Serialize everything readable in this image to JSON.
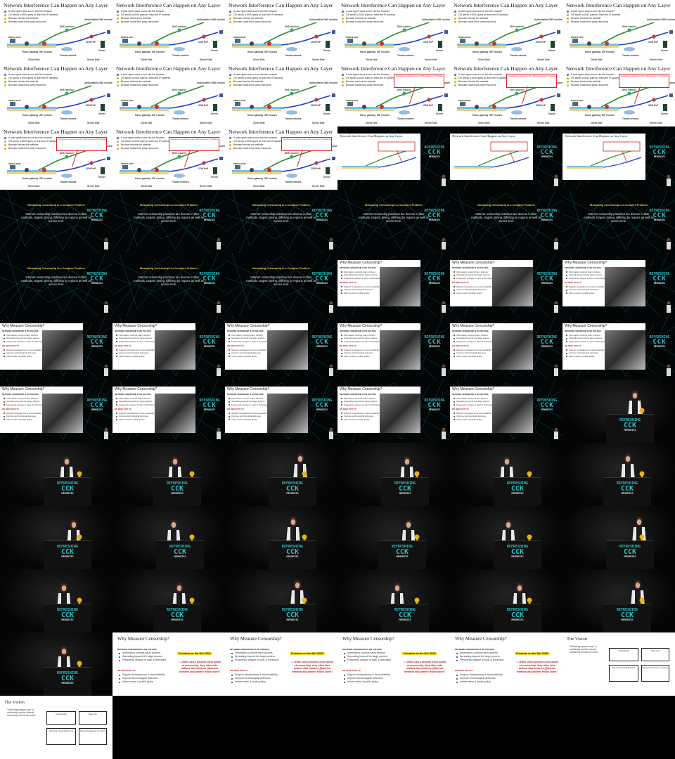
{
  "network_slide": {
    "title": "Network Interference Can Happen on Any Layer",
    "bullets": [
      "A user types www.a.com into the browser",
      "OS sends a DNS query to learn the IP address",
      "Browser fetches the website",
      "Browser loads third party resources"
    ],
    "labels": {
      "dns_resolver": "DNS resolver",
      "authoritative_dns": "Authoritative DNS resolver",
      "isp_resolver": "ISP resolver",
      "cdn": "CDN PoP",
      "home_gateway": "Home gateway",
      "transit": "Transit network",
      "server": "Server",
      "client_side": "Client Side",
      "server_side": "Server Side",
      "client": "www.a.com"
    },
    "popup_text": "Interference could occur here: DNS tampering, IP blocking, TLS/SNI filtering..."
  },
  "complex_slide": {
    "title": "Measuring Censorship Is a Complex Problem",
    "body": "Internet censorship practices are diverse in their methods, targets, timing, differing by regions as well as across time."
  },
  "why_slide": {
    "title": "Why Measure Censorship?",
    "head_1": "NETWORK CENSORSHIP IS ON THE RISE",
    "list_1": [
      "Information controls harm citizens",
      "Spreading beyond the large powers",
      "Frequently opaque in topic & technique"
    ],
    "head_2": "WE NEED DATA TO",
    "list_2": [
      "Support transparency & accountability",
      "Improve technological defenses",
      "Inform users & public policy"
    ],
    "fotn": "Freedom on the Net 2018:",
    "quote": "“...When users become more aware of censorship, they often take actions that enhance [i]nternet freedom and protect fellow users”"
  },
  "vision_slide": {
    "title": "The Vision",
    "quote": "“Delivering opaque map” to continually monitor internet censorship around the world.",
    "boxes": [
      "Global Reach",
      "Data: who",
      "Detecting Censorship Events",
      "Top Events Measure: by country"
    ]
  },
  "brand": {
    "line1": "REFRESHING",
    "line2": "CCK",
    "line3": "MEMORIES"
  },
  "frames": {
    "network": 15,
    "network_interfere_from": 9,
    "talk_network": 3,
    "talk_complex": 9,
    "talk_why": 14,
    "stage": 20,
    "last_row_why": 4,
    "last_row_vision": 2
  },
  "colors": {
    "brand_teal": "#27c3c9",
    "title_yellow": "#f3d23c",
    "alert_red": "#c71c1c"
  }
}
